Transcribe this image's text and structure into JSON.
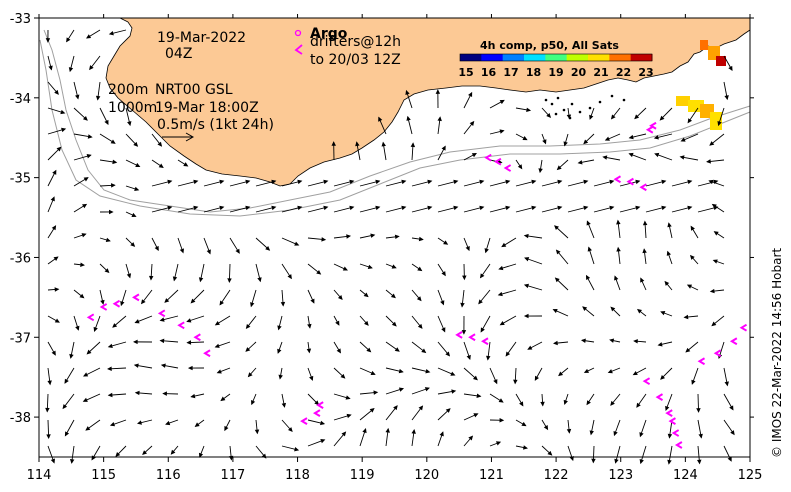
{
  "map": {
    "lon_ticks": [
      "114",
      "115",
      "116",
      "117",
      "118",
      "119",
      "120",
      "121",
      "122",
      "123",
      "124",
      "125"
    ],
    "lat_ticks": [
      "-33",
      "-34",
      "-35",
      "-36",
      "-37",
      "-38"
    ],
    "lon_range": [
      114,
      125
    ],
    "lat_range": [
      -38.5,
      -33
    ],
    "date": "19-Mar-2022",
    "time": "04Z",
    "depth_200": "200m",
    "depth_1000": "1000m",
    "nrt_label": "NRT00 GSL",
    "nrt_time": "19-Mar 18:00Z",
    "scale_label": "0.5m/s (1kt 24h)",
    "argo_label": "Argo",
    "drifters_label": "drifters@12h",
    "drifters_to": "to 20/03 12Z",
    "credit": "© IMOS 22-Mar-2022 14:56 Hobart",
    "colors": {
      "land": "#fcc995",
      "drifter": "#ff00ff",
      "isobath": "#a0a0a0"
    }
  },
  "colorbar": {
    "title": "4h comp, p50, All Sats",
    "ticks": [
      "15",
      "16",
      "17",
      "18",
      "19",
      "20",
      "21",
      "22",
      "23"
    ],
    "colors": [
      "#00007f",
      "#0000ff",
      "#0080ff",
      "#00e0ff",
      "#40ff80",
      "#c0ff00",
      "#ffe000",
      "#ff7000",
      "#c00000"
    ]
  },
  "drifters": [
    {
      "name": "d1",
      "pts": [
        [
          114.8,
          -36.75
        ],
        [
          115.0,
          -36.62
        ],
        [
          115.2,
          -36.58
        ],
        [
          115.5,
          -36.5
        ]
      ]
    },
    {
      "name": "d2",
      "pts": [
        [
          115.9,
          -36.7
        ],
        [
          116.2,
          -36.85
        ],
        [
          116.45,
          -37.0
        ],
        [
          116.6,
          -37.2
        ]
      ]
    },
    {
      "name": "d3",
      "pts": [
        [
          118.1,
          -38.05
        ],
        [
          118.3,
          -37.95
        ],
        [
          118.35,
          -37.85
        ]
      ]
    },
    {
      "name": "d4",
      "pts": [
        [
          120.5,
          -36.97
        ],
        [
          120.7,
          -37.0
        ],
        [
          120.9,
          -37.05
        ]
      ]
    },
    {
      "name": "d5",
      "pts": [
        [
          120.95,
          -34.75
        ],
        [
          121.1,
          -34.8
        ],
        [
          121.25,
          -34.88
        ]
      ]
    },
    {
      "name": "d6",
      "pts": [
        [
          122.95,
          -35.02
        ],
        [
          123.15,
          -35.05
        ],
        [
          123.35,
          -35.12
        ]
      ]
    },
    {
      "name": "d7",
      "pts": [
        [
          123.45,
          -34.4
        ],
        [
          123.5,
          -34.35
        ]
      ]
    },
    {
      "name": "d8",
      "pts": [
        [
          123.4,
          -37.55
        ],
        [
          123.6,
          -37.75
        ],
        [
          123.75,
          -37.95
        ]
      ]
    },
    {
      "name": "d9",
      "pts": [
        [
          123.8,
          -38.05
        ],
        [
          123.85,
          -38.2
        ],
        [
          123.9,
          -38.35
        ]
      ]
    },
    {
      "name": "d10",
      "pts": [
        [
          124.25,
          -37.3
        ],
        [
          124.5,
          -37.2
        ],
        [
          124.75,
          -37.05
        ],
        [
          124.9,
          -36.88
        ]
      ]
    }
  ]
}
